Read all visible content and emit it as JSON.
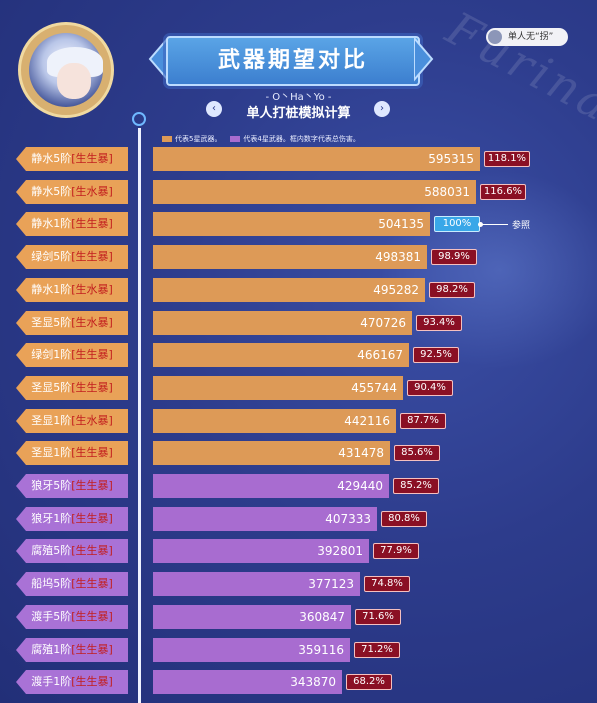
{
  "header": {
    "title": "武器期望对比",
    "subtitle": "- O丶Ha丶Yo -",
    "subtitle2": "单人打桩模拟计算",
    "user_tag": "单人无“拐”",
    "watermark": "Furina",
    "nav_left": "‹",
    "nav_right": "›"
  },
  "legend": {
    "five_star": "代表5星武器。",
    "four_star": "代表4星武器。框内数字代表总伤害。",
    "five_color": "#dd9a57",
    "four_color": "#a86cd0"
  },
  "reference": {
    "label": "参照"
  },
  "chart_data": {
    "type": "bar",
    "orientation": "horizontal",
    "categories": [
      "静水5阶[生生暴]",
      "静水5阶[生水暴]",
      "静水1阶[生生暴]",
      "绿剑5阶[生生暴]",
      "静水1阶[生水暴]",
      "圣显5阶[生水暴]",
      "绿剑1阶[生生暴]",
      "圣显5阶[生生暴]",
      "圣显1阶[生水暴]",
      "圣显1阶[生生暴]",
      "狼牙5阶[生生暴]",
      "狼牙1阶[生生暴]",
      "腐殖5阶[生生暴]",
      "船坞5阶[生生暴]",
      "渡手5阶[生生暴]",
      "腐殖1阶[生生暴]",
      "渡手1阶[生生暴]"
    ],
    "rows": [
      {
        "name": "静水5阶",
        "suffix": "[生生暴]",
        "value": 595315,
        "pct": "118.1%",
        "tier": 5
      },
      {
        "name": "静水5阶",
        "suffix": "[生水暴]",
        "value": 588031,
        "pct": "116.6%",
        "tier": 5
      },
      {
        "name": "静水1阶",
        "suffix": "[生生暴]",
        "value": 504135,
        "pct": "100%",
        "tier": 5,
        "reference": true
      },
      {
        "name": "绿剑5阶",
        "suffix": "[生生暴]",
        "value": 498381,
        "pct": "98.9%",
        "tier": 5
      },
      {
        "name": "静水1阶",
        "suffix": "[生水暴]",
        "value": 495282,
        "pct": "98.2%",
        "tier": 5
      },
      {
        "name": "圣显5阶",
        "suffix": "[生水暴]",
        "value": 470726,
        "pct": "93.4%",
        "tier": 5
      },
      {
        "name": "绿剑1阶",
        "suffix": "[生生暴]",
        "value": 466167,
        "pct": "92.5%",
        "tier": 5
      },
      {
        "name": "圣显5阶",
        "suffix": "[生生暴]",
        "value": 455744,
        "pct": "90.4%",
        "tier": 5
      },
      {
        "name": "圣显1阶",
        "suffix": "[生水暴]",
        "value": 442116,
        "pct": "87.7%",
        "tier": 5
      },
      {
        "name": "圣显1阶",
        "suffix": "[生生暴]",
        "value": 431478,
        "pct": "85.6%",
        "tier": 5
      },
      {
        "name": "狼牙5阶",
        "suffix": "[生生暴]",
        "value": 429440,
        "pct": "85.2%",
        "tier": 4
      },
      {
        "name": "狼牙1阶",
        "suffix": "[生生暴]",
        "value": 407333,
        "pct": "80.8%",
        "tier": 4
      },
      {
        "name": "腐殖5阶",
        "suffix": "[生生暴]",
        "value": 392801,
        "pct": "77.9%",
        "tier": 4
      },
      {
        "name": "船坞5阶",
        "suffix": "[生生暴]",
        "value": 377123,
        "pct": "74.8%",
        "tier": 4
      },
      {
        "name": "渡手5阶",
        "suffix": "[生生暴]",
        "value": 360847,
        "pct": "71.6%",
        "tier": 4
      },
      {
        "name": "腐殖1阶",
        "suffix": "[生生暴]",
        "value": 359116,
        "pct": "71.2%",
        "tier": 4
      },
      {
        "name": "渡手1阶",
        "suffix": "[生生暴]",
        "value": 343870,
        "pct": "68.2%",
        "tier": 4
      }
    ],
    "title": "武器期望对比",
    "xlabel": "",
    "ylabel": "",
    "grid": false,
    "legend_position": "top-left"
  }
}
